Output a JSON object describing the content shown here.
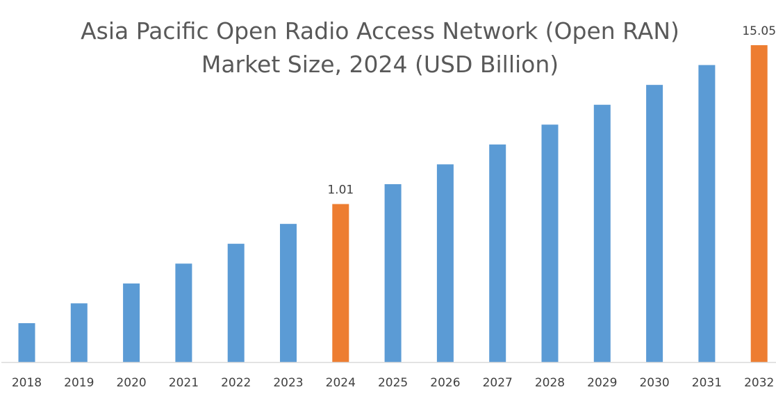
{
  "chart_data": {
    "type": "bar",
    "title_lines": [
      "Asia Pacific Open Radio Access Network (Open RAN)",
      "Market Size, 2024 (USD Billion)"
    ],
    "xlabel": "",
    "ylabel": "",
    "categories": [
      "2018",
      "2019",
      "2020",
      "2021",
      "2022",
      "2023",
      "2024",
      "2025",
      "2026",
      "2027",
      "2028",
      "2029",
      "2030",
      "2031",
      "2032"
    ],
    "values": [
      null,
      null,
      null,
      null,
      null,
      null,
      1.01,
      null,
      null,
      null,
      null,
      null,
      null,
      null,
      15.05
    ],
    "data_labels": {
      "2024": "1.01",
      "2032": "15.05"
    },
    "highlighted": [
      "2024",
      "2032"
    ],
    "colors": {
      "default": "#5B9BD5",
      "highlight": "#ED7D31",
      "axis": "#D9D9D9"
    },
    "grid": false,
    "y_axis_shown": false,
    "legend": "none"
  }
}
